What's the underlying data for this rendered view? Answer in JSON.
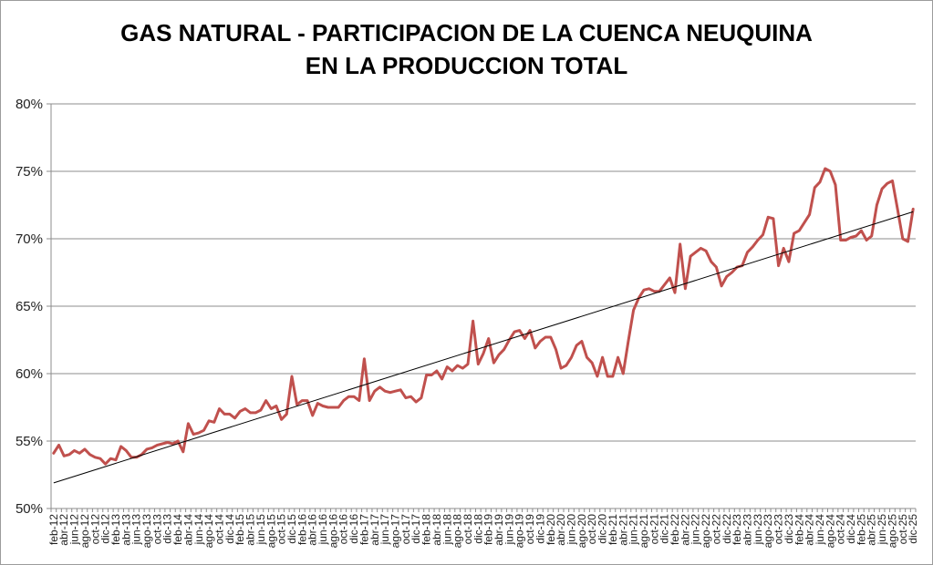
{
  "chart_data": {
    "type": "line",
    "title_lines": [
      "GAS NATURAL - PARTICIPACION DE LA CUENCA NEUQUINA",
      "EN LA PRODUCCION TOTAL"
    ],
    "xlabel": "",
    "ylabel": "",
    "ylim": [
      0.5,
      0.8
    ],
    "yticks": [
      "50%",
      "55%",
      "60%",
      "65%",
      "70%",
      "75%",
      "80%"
    ],
    "yticks_values": [
      0.5,
      0.55,
      0.6,
      0.65,
      0.7,
      0.75,
      0.8
    ],
    "grid": "horizontal",
    "legend": "none",
    "x_tick_labels": [
      "feb-12",
      "abr-12",
      "jun-12",
      "ago-12",
      "oct-12",
      "dic-12",
      "feb-13",
      "abr-13",
      "jun-13",
      "ago-13",
      "oct-13",
      "dic-13",
      "feb-14",
      "abr-14",
      "jun-14",
      "ago-14",
      "oct-14",
      "dic-14",
      "feb-15",
      "abr-15",
      "jun-15",
      "ago-15",
      "oct-15",
      "dic-15",
      "feb-16",
      "abr-16",
      "jun-16",
      "ago-16",
      "oct-16",
      "dic-16",
      "feb-17",
      "abr-17",
      "jun-17",
      "ago-17",
      "oct-17",
      "dic-17",
      "feb-18",
      "abr-18",
      "jun-18",
      "ago-18",
      "oct-18",
      "dic-18",
      "feb-19",
      "abr-19",
      "jun-19",
      "ago-19",
      "oct-19",
      "dic-19",
      "feb-20",
      "abr-20",
      "jun-20",
      "ago-20",
      "oct-20",
      "dic-20",
      "feb-21",
      "abr-21",
      "jun-21",
      "ago-21",
      "oct-21",
      "dic-21",
      "feb-22",
      "abr-22",
      "jun-22",
      "ago-22",
      "oct-22",
      "dic-22",
      "feb-23",
      "abr-23",
      "jun-23",
      "ago-23",
      "oct-23",
      "dic-23",
      "feb-24",
      "abr-24",
      "jun-24",
      "ago-24",
      "oct-24",
      "dic-24",
      "feb-25",
      "abr-25",
      "jun-25",
      "ago-25",
      "oct-25",
      "dic-25"
    ],
    "series": [
      {
        "color": "#c0504d",
        "months_from": "feb-12",
        "values": [
          0.541,
          0.547,
          0.539,
          0.54,
          0.543,
          0.541,
          0.544,
          0.54,
          0.538,
          0.537,
          0.533,
          0.537,
          0.536,
          0.546,
          0.543,
          0.538,
          0.538,
          0.54,
          0.544,
          0.545,
          0.547,
          0.548,
          0.549,
          0.548,
          0.55,
          0.542,
          0.563,
          0.555,
          0.556,
          0.558,
          0.565,
          0.564,
          0.574,
          0.57,
          0.57,
          0.567,
          0.572,
          0.574,
          0.571,
          0.571,
          0.573,
          0.58,
          0.574,
          0.576,
          0.566,
          0.57,
          0.598,
          0.577,
          0.58,
          0.58,
          0.569,
          0.578,
          0.576,
          0.575,
          0.575,
          0.575,
          0.58,
          0.583,
          0.583,
          0.58,
          0.611,
          0.58,
          0.587,
          0.59,
          0.587,
          0.586,
          0.587,
          0.588,
          0.582,
          0.583,
          0.579,
          0.582,
          0.599,
          0.599,
          0.602,
          0.596,
          0.605,
          0.602,
          0.606,
          0.604,
          0.607,
          0.639,
          0.607,
          0.615,
          0.626,
          0.608,
          0.614,
          0.618,
          0.625,
          0.631,
          0.632,
          0.626,
          0.632,
          0.619,
          0.624,
          0.627,
          0.627,
          0.618,
          0.604,
          0.606,
          0.612,
          0.621,
          0.624,
          0.612,
          0.608,
          0.598,
          0.612,
          0.598,
          0.598,
          0.612,
          0.6,
          0.624,
          0.647,
          0.656,
          0.662,
          0.663,
          0.661,
          0.661,
          0.666,
          0.671,
          0.66,
          0.696,
          0.663,
          0.687,
          0.69,
          0.693,
          0.691,
          0.683,
          0.679,
          0.665,
          0.672,
          0.675,
          0.679,
          0.68,
          0.69,
          0.694,
          0.699,
          0.703,
          0.716,
          0.715,
          0.68,
          0.693,
          0.683,
          0.704,
          0.706,
          0.712,
          0.718,
          0.738,
          0.742,
          0.752,
          0.75,
          0.74,
          0.699,
          0.699,
          0.701,
          0.702,
          0.706,
          0.699,
          0.702,
          0.725,
          0.737,
          0.741,
          0.743,
          0.722,
          0.7,
          0.698,
          0.722
        ]
      }
    ],
    "trendline": {
      "from": 0.519,
      "to": 0.72,
      "color": "#000000"
    }
  }
}
